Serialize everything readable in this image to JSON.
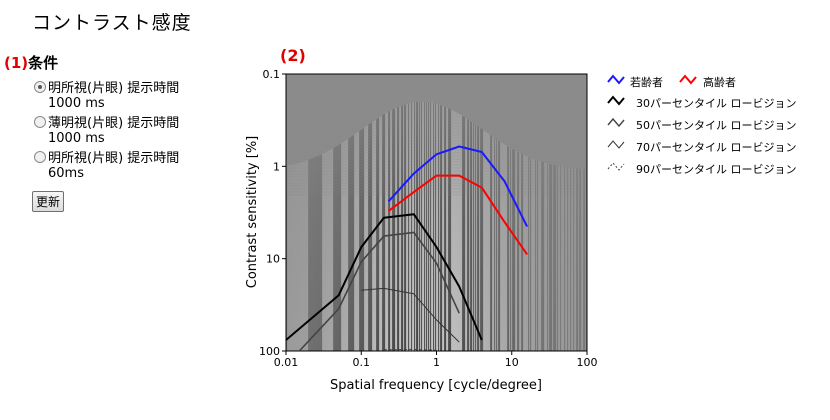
{
  "page_title": "コントラスト感度",
  "section1": {
    "number": "(1)",
    "label": "条件"
  },
  "options": [
    {
      "label": "明所視(片眼) 提示時間",
      "sub": "1000 ms",
      "selected": true
    },
    {
      "label": "薄明視(片眼) 提示時間",
      "sub": "1000   ms",
      "selected": false
    },
    {
      "label": "明所視(片眼) 提示時間",
      "sub": "60ms",
      "selected": false
    }
  ],
  "update_button": "更新",
  "section2": {
    "number": "(2)"
  },
  "chart_data": {
    "type": "line",
    "xlabel": "Spatial frequency [cycle/degree]",
    "ylabel": "Contrast sensitivity [%]",
    "x_scale": "log",
    "y_scale": "log",
    "y_inverted": true,
    "xlim": [
      0.01,
      100
    ],
    "ylim": [
      100,
      0.1
    ],
    "x_ticks": [
      "0.01",
      "0.1",
      "1",
      "10",
      "100"
    ],
    "y_ticks": [
      "0.1",
      "1",
      "10",
      "100"
    ],
    "background": "contrast sensitivity grating",
    "series": [
      {
        "name": "若齢者",
        "color": "#1a1aff",
        "style": "solid",
        "x": [
          0.23,
          0.5,
          1.0,
          2.0,
          4.0,
          8.0,
          16.0
        ],
        "y": [
          2.4,
          1.2,
          0.74,
          0.61,
          0.7,
          1.45,
          4.5
        ]
      },
      {
        "name": "高齢者",
        "color": "#ff0000",
        "style": "solid",
        "x": [
          0.23,
          0.5,
          1.0,
          2.0,
          4.0,
          8.0,
          16.0
        ],
        "y": [
          3.05,
          1.9,
          1.26,
          1.26,
          1.7,
          4.0,
          9.0
        ]
      },
      {
        "name": "30パーセンタイル ロービジョン",
        "color": "#000000",
        "style": "solid",
        "x": [
          0.01,
          0.05,
          0.1,
          0.2,
          0.5,
          1.0,
          2.0,
          4.0
        ],
        "y": [
          76,
          25,
          7.5,
          3.6,
          3.3,
          7.5,
          20,
          76
        ]
      },
      {
        "name": "50パーセンタイル ロービジョン",
        "color": "#444444",
        "style": "solid",
        "x": [
          0.015,
          0.05,
          0.1,
          0.2,
          0.5,
          1.0,
          2.0
        ],
        "y": [
          100,
          35,
          10.8,
          5.7,
          5.2,
          11.2,
          39
        ]
      },
      {
        "name": "70パーセンタイル ロービジョン",
        "color": "#333333",
        "style": "thin",
        "x": [
          0.1,
          0.2,
          0.5,
          1.0,
          2.0
        ],
        "y": [
          22,
          21,
          24,
          46,
          80
        ]
      },
      {
        "name": "90パーセンタイル ロービジョン",
        "color": "#444444",
        "style": "dashed",
        "x": [
          0.2,
          0.5,
          1.0
        ],
        "y": [
          97,
          96,
          98
        ]
      }
    ]
  }
}
